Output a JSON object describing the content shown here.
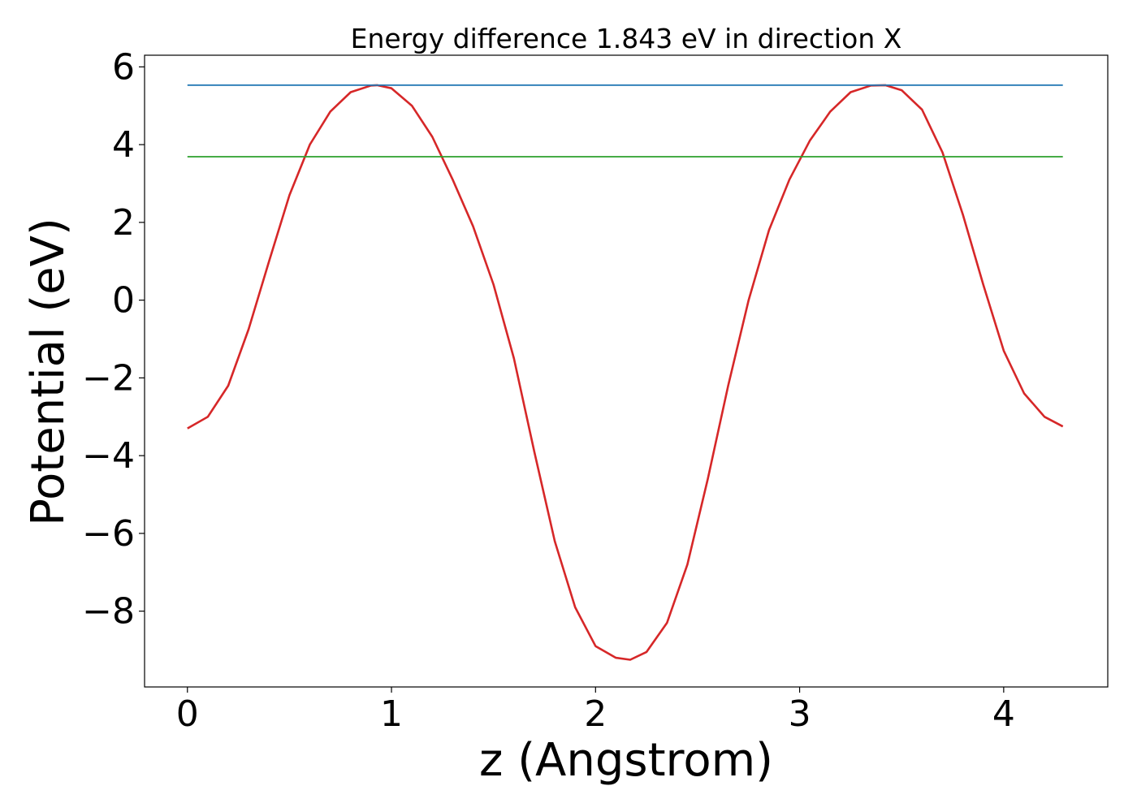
{
  "chart_data": {
    "type": "line",
    "title": "Energy difference 1.843 eV in direction X",
    "xlabel": "z (Angstrom)",
    "ylabel": "Potential (eV)",
    "xlim": [
      -0.21,
      4.51
    ],
    "ylim": [
      -9.95,
      6.3
    ],
    "grid": false,
    "x_ticks": [
      0,
      1,
      2,
      3,
      4
    ],
    "x_tick_labels": [
      "0",
      "1",
      "2",
      "3",
      "4"
    ],
    "y_ticks": [
      6,
      4,
      2,
      0,
      -2,
      -4,
      -6,
      -8
    ],
    "y_tick_labels": [
      "6",
      "4",
      "2",
      "0",
      "−2",
      "−4",
      "−6",
      "−8"
    ],
    "series": [
      {
        "color": "#d62728",
        "x": [
          0.0,
          0.1,
          0.2,
          0.3,
          0.4,
          0.5,
          0.6,
          0.7,
          0.8,
          0.9,
          0.93,
          1.0,
          1.1,
          1.2,
          1.3,
          1.4,
          1.5,
          1.6,
          1.7,
          1.8,
          1.9,
          2.0,
          2.1,
          2.17,
          2.25,
          2.35,
          2.45,
          2.55,
          2.65,
          2.75,
          2.85,
          2.95,
          3.05,
          3.15,
          3.25,
          3.35,
          3.42,
          3.5,
          3.6,
          3.7,
          3.8,
          3.9,
          4.0,
          4.1,
          4.2,
          4.29
        ],
        "y": [
          -3.3,
          -3.0,
          -2.2,
          -0.75,
          1.0,
          2.7,
          4.0,
          4.85,
          5.35,
          5.52,
          5.53,
          5.45,
          5.0,
          4.2,
          3.1,
          1.9,
          0.4,
          -1.5,
          -3.9,
          -6.2,
          -7.9,
          -8.9,
          -9.2,
          -9.25,
          -9.05,
          -8.3,
          -6.8,
          -4.6,
          -2.2,
          0.0,
          1.8,
          3.1,
          4.1,
          4.85,
          5.35,
          5.52,
          5.53,
          5.4,
          4.9,
          3.8,
          2.2,
          0.4,
          -1.3,
          -2.4,
          -3.0,
          -3.25
        ]
      },
      {
        "color": "#1f77b4",
        "x": [
          0.0,
          4.29
        ],
        "y": [
          5.53,
          5.53
        ]
      },
      {
        "color": "#2ca02c",
        "x": [
          0.0,
          4.29
        ],
        "y": [
          3.69,
          3.69
        ]
      }
    ]
  }
}
